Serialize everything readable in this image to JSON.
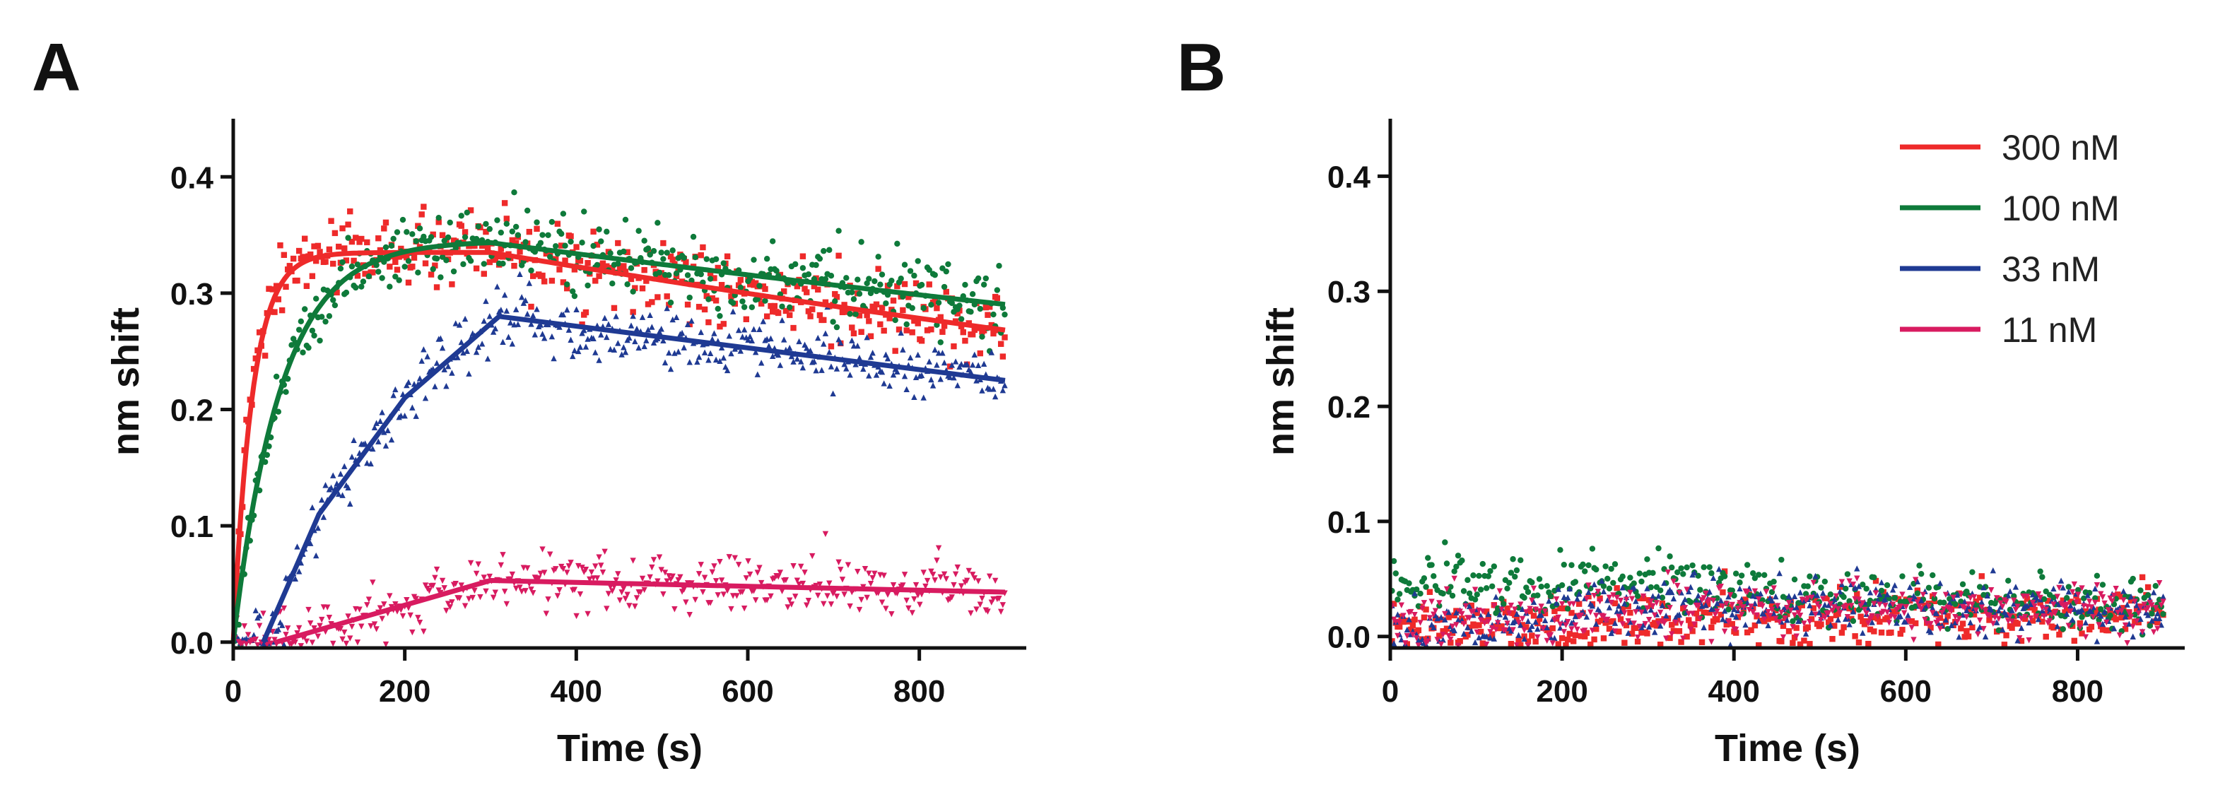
{
  "figure": {
    "colors": {
      "300 nM": "#ee2a2a",
      "100 nM": "#0e7a3a",
      "33 nM": "#1f3a93",
      "11 nM": "#d81b60"
    }
  },
  "chart_data": [
    {
      "panel": "A",
      "type": "scatter",
      "title": "",
      "xlabel": "Time (s)",
      "ylabel": "nm shift",
      "xlim": [
        0,
        900
      ],
      "ylim": [
        -0.005,
        0.45
      ],
      "xticks": [
        0,
        200,
        400,
        600,
        800
      ],
      "yticks": [
        0.0,
        0.1,
        0.2,
        0.3,
        0.4
      ],
      "xtick_labels": [
        "0",
        "200",
        "400",
        "600",
        "800"
      ],
      "ytick_labels": [
        "0.0",
        "0.1",
        "0.2",
        "0.3",
        "0.4"
      ],
      "association_end_s": 300,
      "series": [
        {
          "name": "300 nM",
          "marker": "square",
          "fit": {
            "start": 0,
            "rmax": 0.335,
            "k_on": 0.045,
            "k_off": 0.00037
          },
          "noise": 0.015
        },
        {
          "name": "100 nM",
          "marker": "circle",
          "fit": {
            "start": 0,
            "rmax": 0.345,
            "k_on": 0.018,
            "k_off": 0.00028
          },
          "noise": 0.015
        },
        {
          "name": "33 nM",
          "marker": "triangle-up",
          "fit_points": [
            [
              35,
              0.0
            ],
            [
              100,
              0.11
            ],
            [
              200,
              0.21
            ],
            [
              310,
              0.28
            ],
            [
              900,
              0.225
            ]
          ],
          "noise": 0.013
        },
        {
          "name": "11 nM",
          "marker": "triangle-down",
          "fit_points": [
            [
              50,
              0.0
            ],
            [
              300,
              0.053
            ],
            [
              900,
              0.043
            ]
          ],
          "noise": 0.012
        }
      ]
    },
    {
      "panel": "B",
      "type": "scatter",
      "title": "",
      "xlabel": "Time (s)",
      "ylabel": "nm shift",
      "xlim": [
        0,
        900
      ],
      "ylim": [
        -0.01,
        0.45
      ],
      "xticks": [
        0,
        200,
        400,
        600,
        800
      ],
      "yticks": [
        0.0,
        0.1,
        0.2,
        0.3,
        0.4
      ],
      "xtick_labels": [
        "0",
        "200",
        "400",
        "600",
        "800"
      ],
      "ytick_labels": [
        "0.0",
        "0.1",
        "0.2",
        "0.3",
        "0.4"
      ],
      "legend": {
        "placement": "top-right",
        "entries": [
          "300 nM",
          "100 nM",
          "33 nM",
          "11 nM"
        ]
      },
      "series": [
        {
          "name": "300 nM",
          "marker": "square",
          "baseline": [
            [
              0,
              0.01
            ],
            [
              300,
              0.015
            ],
            [
              900,
              0.02
            ]
          ],
          "noise": 0.012
        },
        {
          "name": "100 nM",
          "marker": "circle",
          "baseline": [
            [
              0,
              0.045
            ],
            [
              250,
              0.05
            ],
            [
              500,
              0.035
            ],
            [
              900,
              0.025
            ]
          ],
          "noise": 0.012
        },
        {
          "name": "33 nM",
          "marker": "triangle-up",
          "baseline": [
            [
              0,
              0.005
            ],
            [
              350,
              0.03
            ],
            [
              900,
              0.02
            ]
          ],
          "noise": 0.012
        },
        {
          "name": "11 nM",
          "marker": "triangle-down",
          "baseline": [
            [
              0,
              0.01
            ],
            [
              400,
              0.025
            ],
            [
              900,
              0.02
            ]
          ],
          "noise": 0.012
        }
      ]
    }
  ]
}
